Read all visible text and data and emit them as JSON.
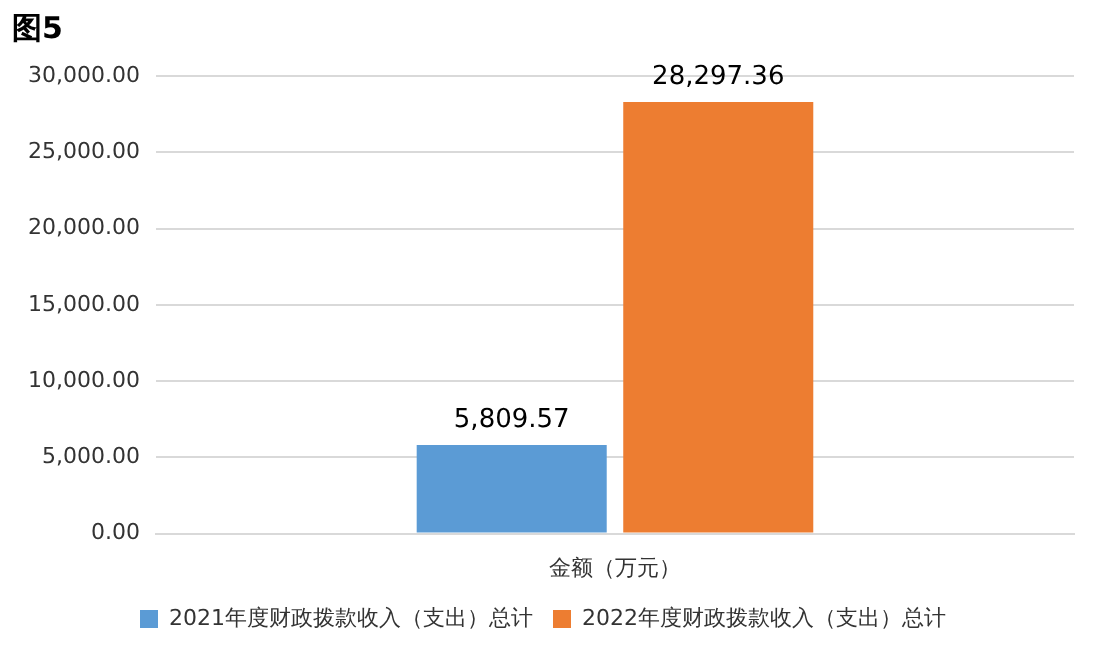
{
  "chart_data": {
    "type": "bar",
    "title": "图5",
    "categories": [
      "金额（万元）"
    ],
    "series": [
      {
        "name": "2021年度财政拨款收入（支出）总计",
        "color": "#5b9bd5",
        "values": [
          5809.57
        ],
        "value_labels": [
          "5,809.57"
        ]
      },
      {
        "name": "2022年度财政拨款收入（支出）总计",
        "color": "#ed7d31",
        "values": [
          28297.36
        ],
        "value_labels": [
          "28,297.36"
        ]
      }
    ],
    "ylim": [
      0,
      30000
    ],
    "yticks": [
      {
        "value": 0,
        "label": "0.00"
      },
      {
        "value": 5000,
        "label": "5,000.00"
      },
      {
        "value": 10000,
        "label": "10,000.00"
      },
      {
        "value": 15000,
        "label": "15,000.00"
      },
      {
        "value": 20000,
        "label": "20,000.00"
      },
      {
        "value": 25000,
        "label": "25,000.00"
      },
      {
        "value": 30000,
        "label": "30,000.00"
      }
    ],
    "grid": "y",
    "legend": "bottom"
  }
}
